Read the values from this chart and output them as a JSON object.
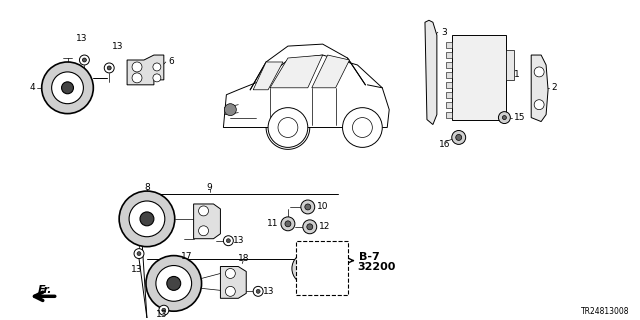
{
  "bg_color": "#ffffff",
  "part_code": "TR24813008",
  "figsize": [
    6.4,
    3.2
  ],
  "dpi": 100
}
